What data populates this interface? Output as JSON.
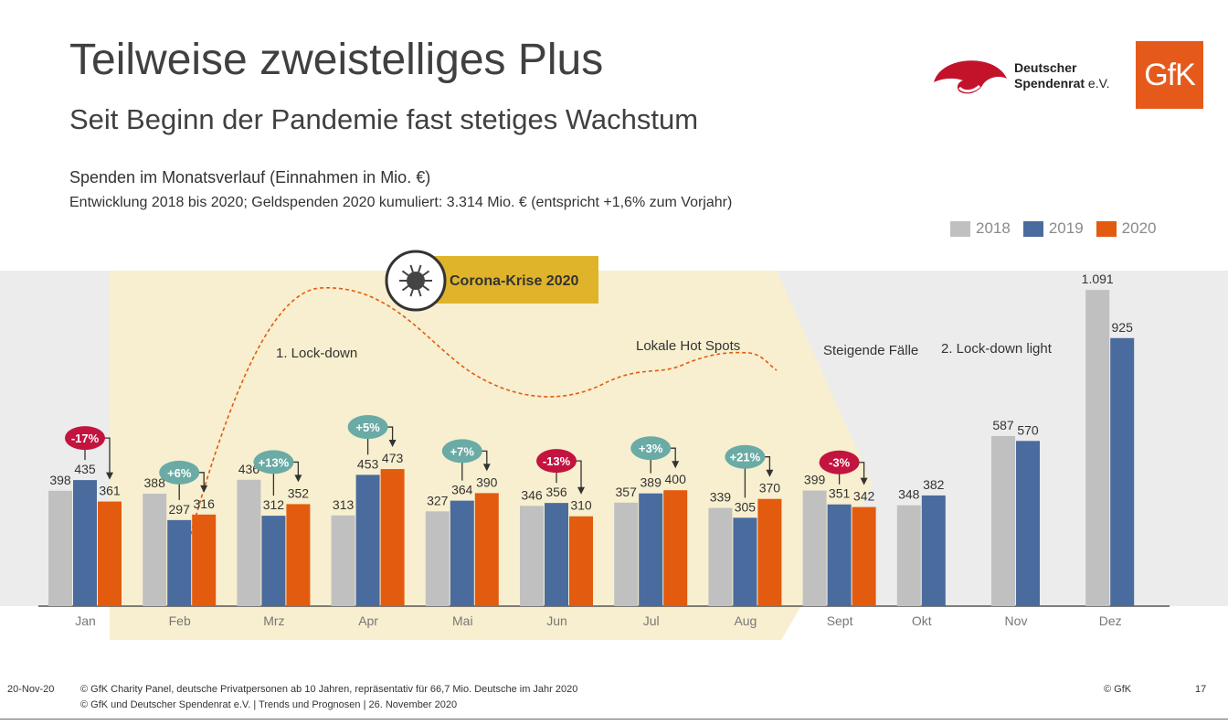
{
  "header": {
    "title": "Teilweise zweistelliges Plus",
    "subtitle": "Seit Beginn der Pandemie fast stetiges Wachstum"
  },
  "logos": {
    "spendenrat_line1": "Deutscher",
    "spendenrat_line2": "Spendenrat",
    "spendenrat_ev": "e.V.",
    "spendenrat_color": "#c3132b",
    "gfk": "GfK",
    "gfk_color": "#e55a1b"
  },
  "chart_data": {
    "type": "bar",
    "title": "Spenden im Monatsverlauf (Einnahmen in Mio. €)",
    "subtitle": "Entwicklung 2018 bis 2020; Geldspenden 2020 kumuliert: 3.314 Mio. € (entspricht +1,6% zum Vorjahr)",
    "categories": [
      "Jan",
      "Feb",
      "Mrz",
      "Apr",
      "Mai",
      "Jun",
      "Jul",
      "Aug",
      "Sept",
      "Okt",
      "Nov",
      "Dez"
    ],
    "series": [
      {
        "name": "2018",
        "color": "#c0c0c0",
        "values": [
          398,
          388,
          436,
          313,
          327,
          346,
          357,
          339,
          399,
          348,
          587,
          1091
        ],
        "labels": [
          "398",
          "388",
          "436",
          "313",
          "327",
          "346",
          "357",
          "339",
          "399",
          "348",
          "587",
          "1.091"
        ]
      },
      {
        "name": "2019",
        "color": "#4a6b9d",
        "values": [
          435,
          297,
          312,
          453,
          364,
          356,
          389,
          305,
          351,
          382,
          570,
          925
        ],
        "labels": [
          "435",
          "297",
          "312",
          "453",
          "364",
          "356",
          "389",
          "305",
          "351",
          "382",
          "570",
          "925"
        ]
      },
      {
        "name": "2020",
        "color": "#e35b0e",
        "values": [
          361,
          316,
          352,
          473,
          390,
          310,
          400,
          370,
          342,
          null,
          null,
          null
        ],
        "labels": [
          "361",
          "316",
          "352",
          "473",
          "390",
          "310",
          "400",
          "370",
          "342",
          null,
          null,
          null
        ]
      }
    ],
    "ylim": [
      0,
      1150
    ],
    "changes": [
      {
        "month": "Jan",
        "label": "-17%",
        "type": "neg"
      },
      {
        "month": "Feb",
        "label": "+6%",
        "type": "pos"
      },
      {
        "month": "Mrz",
        "label": "+13%",
        "type": "pos"
      },
      {
        "month": "Apr",
        "label": "+5%",
        "type": "pos"
      },
      {
        "month": "Mai",
        "label": "+7%",
        "type": "pos"
      },
      {
        "month": "Jun",
        "label": "-13%",
        "type": "neg"
      },
      {
        "month": "Jul",
        "label": "+3%",
        "type": "pos"
      },
      {
        "month": "Aug",
        "label": "+21%",
        "type": "pos"
      },
      {
        "month": "Sept",
        "label": "-3%",
        "type": "neg"
      }
    ],
    "annotations": {
      "corona": "Corona-Krise 2020",
      "lockdown1": "1. Lock-down",
      "hotspots": "Lokale Hot Spots",
      "steigende": "Steigende Fälle",
      "lockdown2": "2. Lock-down light"
    },
    "colors": {
      "pos": "#6aaba5",
      "neg": "#c3133f",
      "crisis_area": "#f7efcf",
      "crisis_label": "#e0b42a",
      "band": "#ececec"
    }
  },
  "footer": {
    "date": "20-Nov-20",
    "source1": "© GfK Charity Panel, deutsche Privatpersonen ab 10 Jahren, repräsentativ für 66,7 Mio. Deutsche im Jahr 2020",
    "source2": "© GfK und Deutscher Spendenrat e.V. | Trends und Prognosen | 26. November 2020",
    "copyright": "© GfK",
    "page": "17"
  }
}
